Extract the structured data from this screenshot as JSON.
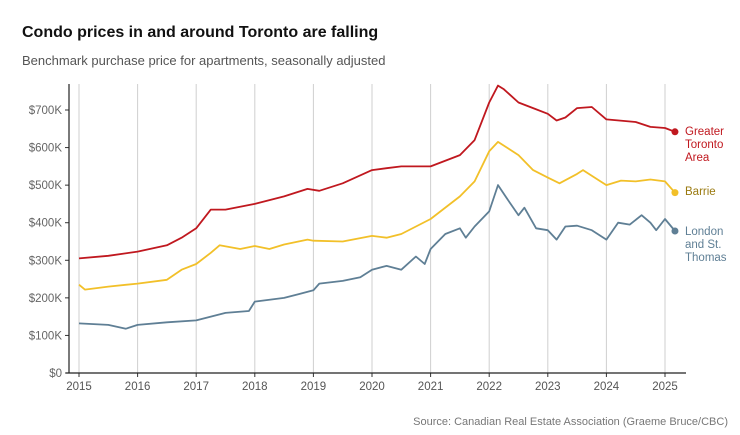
{
  "title": "Condo prices in and around Toronto are falling",
  "subtitle": "Benchmark purchase price for apartments, seasonally adjusted",
  "source": "Source: Canadian Real Estate Association (Graeme Bruce/CBC)",
  "chart_data": {
    "type": "line",
    "title": "Condo prices in and around Toronto are falling",
    "subtitle": "Benchmark purchase price for apartments, seasonally adjusted",
    "xlabel": "",
    "ylabel": "",
    "xlim": [
      2014.9,
      2025.35
    ],
    "ylim": [
      0,
      770000
    ],
    "grid": "vertical",
    "legend": "right, end-of-line labels",
    "xticks": [
      2015,
      2016,
      2017,
      2018,
      2019,
      2020,
      2021,
      2022,
      2023,
      2024,
      2025
    ],
    "xtick_labels": [
      "2015",
      "2016",
      "2017",
      "2018",
      "2019",
      "2020",
      "2021",
      "2022",
      "2023",
      "2024",
      "2025"
    ],
    "yticks": [
      0,
      100000,
      200000,
      300000,
      400000,
      500000,
      600000,
      700000
    ],
    "ytick_labels": [
      "$0",
      "$100K",
      "$200K",
      "$300K",
      "$400K",
      "$500K",
      "$600K",
      "$700K"
    ],
    "series": [
      {
        "name": "Greater Toronto Area",
        "label_lines": [
          "Greater",
          "Toronto",
          "Area"
        ],
        "color": "#c0181f",
        "label_color": "#c0181f",
        "x": [
          2015.0,
          2015.5,
          2016.0,
          2016.5,
          2016.75,
          2017.0,
          2017.25,
          2017.5,
          2018.0,
          2018.5,
          2018.9,
          2019.1,
          2019.5,
          2020.0,
          2020.25,
          2020.5,
          2021.0,
          2021.5,
          2021.75,
          2022.0,
          2022.15,
          2022.25,
          2022.5,
          2022.75,
          2023.0,
          2023.15,
          2023.3,
          2023.5,
          2023.75,
          2024.0,
          2024.5,
          2024.75,
          2025.0,
          2025.17
        ],
        "y": [
          305000,
          312000,
          323000,
          340000,
          360000,
          385000,
          435000,
          435000,
          450000,
          470000,
          490000,
          485000,
          505000,
          540000,
          545000,
          550000,
          550000,
          580000,
          620000,
          720000,
          765000,
          755000,
          720000,
          705000,
          690000,
          672000,
          680000,
          705000,
          708000,
          675000,
          668000,
          655000,
          652000,
          642000
        ]
      },
      {
        "name": "Barrie",
        "label_lines": [
          "Barrie"
        ],
        "color": "#f2c029",
        "label_color": "#9a7a10",
        "x": [
          2015.0,
          2015.1,
          2015.5,
          2016.0,
          2016.5,
          2016.75,
          2017.0,
          2017.25,
          2017.4,
          2017.75,
          2018.0,
          2018.25,
          2018.5,
          2018.9,
          2019.0,
          2019.5,
          2020.0,
          2020.25,
          2020.5,
          2021.0,
          2021.5,
          2021.75,
          2022.0,
          2022.15,
          2022.5,
          2022.75,
          2023.0,
          2023.2,
          2023.5,
          2023.6,
          2023.9,
          2024.0,
          2024.25,
          2024.5,
          2024.75,
          2025.0,
          2025.17
        ],
        "y": [
          235000,
          222000,
          230000,
          238000,
          248000,
          275000,
          290000,
          320000,
          340000,
          330000,
          338000,
          330000,
          342000,
          355000,
          352000,
          350000,
          365000,
          360000,
          370000,
          410000,
          470000,
          510000,
          590000,
          615000,
          580000,
          540000,
          520000,
          505000,
          530000,
          540000,
          510000,
          500000,
          512000,
          510000,
          515000,
          510000,
          480000
        ]
      },
      {
        "name": "London and St. Thomas",
        "label_lines": [
          "London",
          "and St.",
          "Thomas"
        ],
        "color": "#5f7f95",
        "label_color": "#5f7f95",
        "x": [
          2015.0,
          2015.5,
          2015.8,
          2016.0,
          2016.5,
          2017.0,
          2017.5,
          2017.9,
          2018.0,
          2018.5,
          2018.75,
          2019.0,
          2019.1,
          2019.5,
          2019.8,
          2020.0,
          2020.25,
          2020.5,
          2020.75,
          2020.9,
          2021.0,
          2021.25,
          2021.5,
          2021.6,
          2021.75,
          2022.0,
          2022.15,
          2022.3,
          2022.5,
          2022.6,
          2022.8,
          2023.0,
          2023.15,
          2023.3,
          2023.5,
          2023.75,
          2024.0,
          2024.2,
          2024.4,
          2024.6,
          2024.75,
          2024.85,
          2025.0,
          2025.17
        ],
        "y": [
          132000,
          128000,
          118000,
          128000,
          135000,
          140000,
          160000,
          165000,
          190000,
          200000,
          210000,
          220000,
          238000,
          245000,
          255000,
          275000,
          285000,
          275000,
          310000,
          290000,
          330000,
          370000,
          385000,
          360000,
          390000,
          430000,
          500000,
          465000,
          420000,
          440000,
          385000,
          380000,
          355000,
          390000,
          392000,
          380000,
          355000,
          400000,
          395000,
          420000,
          400000,
          380000,
          410000,
          378000
        ]
      }
    ]
  }
}
